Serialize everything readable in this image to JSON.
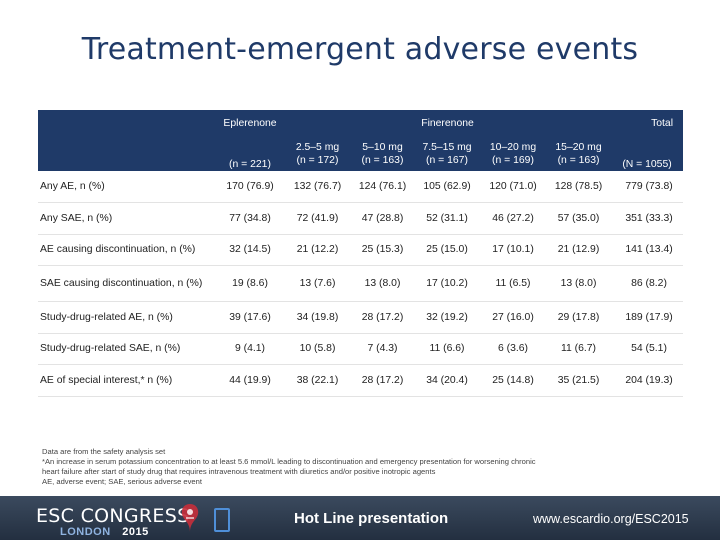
{
  "title": "Treatment-emergent adverse events",
  "table": {
    "group_headers": {
      "eplerenone": "Eplerenone",
      "finerenone": "Finerenone",
      "total": "Total"
    },
    "dose_headers": [
      "2.5–5 mg",
      "5–10 mg",
      "7.5–15 mg",
      "10–20 mg",
      "15–20 mg"
    ],
    "n_headers": [
      "(n = 221)",
      "(n = 172)",
      "(n = 163)",
      "(n = 167)",
      "(n = 169)",
      "(n = 163)",
      "(N = 1055)"
    ],
    "rows": [
      {
        "label": "Any AE, n (%)",
        "values": [
          "170 (76.9)",
          "132 (76.7)",
          "124 (76.1)",
          "105 (62.9)",
          "120 (71.0)",
          "128 (78.5)",
          "779 (73.8)"
        ]
      },
      {
        "label": "Any SAE, n (%)",
        "values": [
          "77 (34.8)",
          "72 (41.9)",
          "47 (28.8)",
          "52 (31.1)",
          "46 (27.2)",
          "57 (35.0)",
          "351 (33.3)"
        ]
      },
      {
        "label": "AE causing discontinuation, n (%)",
        "values": [
          "32 (14.5)",
          "21 (12.2)",
          "25 (15.3)",
          "25 (15.0)",
          "17 (10.1)",
          "21 (12.9)",
          "141 (13.4)"
        ]
      },
      {
        "label": "SAE causing discontinuation, n (%)",
        "values": [
          "19 (8.6)",
          "13 (7.6)",
          "13 (8.0)",
          "17 (10.2)",
          "11 (6.5)",
          "13 (8.0)",
          "86 (8.2)"
        ]
      },
      {
        "label": "Study-drug-related AE, n (%)",
        "values": [
          "39 (17.6)",
          "34 (19.8)",
          "28 (17.2)",
          "32 (19.2)",
          "27 (16.0)",
          "29 (17.8)",
          "189 (17.9)"
        ]
      },
      {
        "label": "Study-drug-related SAE, n (%)",
        "values": [
          "9 (4.1)",
          "10 (5.8)",
          "7 (4.3)",
          "11 (6.6)",
          "6 (3.6)",
          "11 (6.7)",
          "54 (5.1)"
        ]
      },
      {
        "label": "AE of special interest,* n (%)",
        "values": [
          "44 (19.9)",
          "38 (22.1)",
          "28 (17.2)",
          "34 (20.4)",
          "25 (14.8)",
          "35 (21.5)",
          "204 (19.3)"
        ]
      }
    ]
  },
  "footnotes": [
    "Data are from the safety analysis set",
    "*An increase in serum potassium concentration to at least 5.6 mmol/L leading to discontinuation and emergency presentation for worsening chronic",
    "heart failure after start of study drug that requires intravenous treatment with diuretics and/or positive inotropic agents",
    "AE, adverse event; SAE, serious adverse event"
  ],
  "banner": {
    "brand": "ESC CONGRESS",
    "city": "LONDON",
    "year": "2015",
    "label": "Hot Line presentation",
    "url": "www.escardio.org/ESC2015"
  },
  "colors": {
    "header_bg": "#1f3a68",
    "title": "#1f3a68",
    "banner_bg": "#2b3a4e"
  }
}
